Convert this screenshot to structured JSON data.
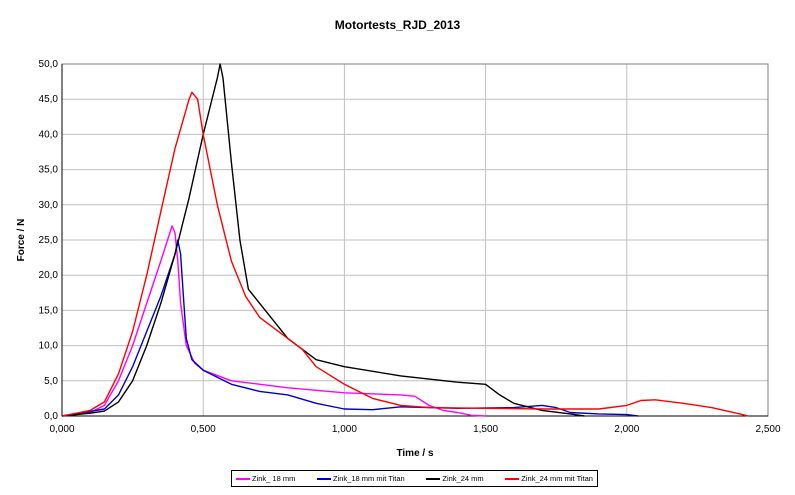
{
  "chart_data": {
    "type": "line",
    "title": "Motortests_RJD_2013",
    "xlabel": "Time / s",
    "ylabel": "Force / N",
    "xlim": [
      0,
      2.5
    ],
    "ylim": [
      0,
      50
    ],
    "grid": true,
    "legend_position": "bottom",
    "x_ticks": [
      "0,000",
      "0,500",
      "1,000",
      "1,500",
      "2,000",
      "2,500"
    ],
    "y_ticks": [
      "0,0",
      "5,0",
      "10,0",
      "15,0",
      "20,0",
      "25,0",
      "30,0",
      "35,0",
      "40,0",
      "45,0",
      "50,0"
    ],
    "series": [
      {
        "name": "Zink_ 18 mm",
        "color": "#ff00ff",
        "x": [
          0,
          0.1,
          0.15,
          0.2,
          0.25,
          0.3,
          0.35,
          0.39,
          0.4,
          0.41,
          0.42,
          0.44,
          0.47,
          0.5,
          0.6,
          0.8,
          1.0,
          1.2,
          1.25,
          1.3,
          1.35,
          1.4,
          1.45,
          1.5
        ],
        "y": [
          0,
          0.5,
          1.5,
          5,
          10,
          16,
          22,
          27,
          26,
          22,
          16,
          10,
          7.5,
          6.5,
          5,
          4,
          3.3,
          3,
          2.8,
          1.5,
          0.8,
          0.5,
          0.1,
          0
        ]
      },
      {
        "name": "Zink_18 mm mit Titan",
        "color": "#0000cc",
        "x": [
          0,
          0.15,
          0.2,
          0.25,
          0.3,
          0.35,
          0.4,
          0.41,
          0.42,
          0.43,
          0.44,
          0.46,
          0.5,
          0.6,
          0.7,
          0.8,
          0.9,
          1.0,
          1.1,
          1.2,
          1.4,
          1.6,
          1.7,
          1.75,
          1.8,
          1.9,
          2.0,
          2.04
        ],
        "y": [
          0,
          1,
          3,
          7,
          12,
          17,
          23,
          25,
          23,
          17,
          11,
          8,
          6.5,
          4.5,
          3.5,
          3,
          1.8,
          1,
          0.9,
          1.3,
          1.1,
          1.2,
          1.5,
          1.2,
          0.5,
          0.3,
          0.2,
          0
        ]
      },
      {
        "name": "Zink_24 mm",
        "color": "#000000",
        "x": [
          0,
          0.1,
          0.15,
          0.2,
          0.25,
          0.3,
          0.35,
          0.4,
          0.45,
          0.5,
          0.55,
          0.56,
          0.57,
          0.6,
          0.63,
          0.66,
          0.7,
          0.8,
          0.9,
          1.0,
          1.2,
          1.4,
          1.5,
          1.55,
          1.6,
          1.7,
          1.8,
          1.85
        ],
        "y": [
          0,
          0.4,
          0.7,
          2,
          5,
          10,
          16,
          23,
          31,
          40,
          48,
          50,
          48,
          36,
          25,
          18,
          16,
          11,
          8,
          7,
          5.7,
          4.8,
          4.5,
          3,
          1.8,
          0.8,
          0.3,
          0
        ]
      },
      {
        "name": "Zink_24 mm mit Titan",
        "color": "#ff0000",
        "x": [
          0,
          0.1,
          0.15,
          0.2,
          0.25,
          0.3,
          0.35,
          0.4,
          0.45,
          0.46,
          0.48,
          0.5,
          0.55,
          0.6,
          0.65,
          0.7,
          0.8,
          0.85,
          0.9,
          1.0,
          1.1,
          1.2,
          1.3,
          1.5,
          1.7,
          1.9,
          2.0,
          2.05,
          2.1,
          2.2,
          2.3,
          2.4,
          2.43
        ],
        "y": [
          0,
          0.8,
          2,
          6,
          12,
          20,
          29,
          38,
          45,
          46,
          45,
          40,
          30,
          22,
          17,
          14,
          11,
          9.5,
          7,
          4.5,
          2.5,
          1.5,
          1.2,
          1.1,
          1.0,
          1.0,
          1.5,
          2.2,
          2.3,
          1.8,
          1.2,
          0.3,
          0
        ]
      }
    ]
  }
}
